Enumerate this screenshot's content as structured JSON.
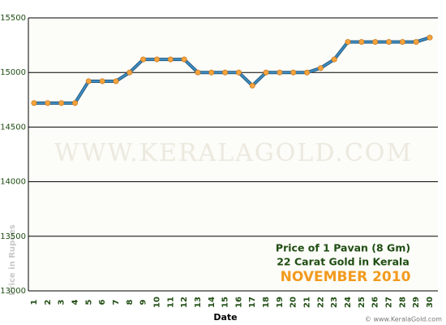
{
  "chart_data": {
    "type": "line",
    "title_lines": [
      "Price of 1 Pavan (8 Gm)",
      "22 Carat Gold in Kerala"
    ],
    "subtitle": "NOVEMBER 2010",
    "x_label": "Date",
    "y_label": "Price in Rupees",
    "watermark": "WWW.KERALAGOLD.COM",
    "credit": "© www.KeralaGold.com",
    "categories": [
      "1",
      "2",
      "3",
      "4",
      "5",
      "6",
      "7",
      "8",
      "9",
      "10",
      "11",
      "12",
      "13",
      "14",
      "15",
      "16",
      "17",
      "18",
      "19",
      "20",
      "21",
      "22",
      "23",
      "24",
      "25",
      "26",
      "27",
      "28",
      "29",
      "30"
    ],
    "series": [
      {
        "color": "#3f8fc4",
        "marker_color": "#f5a33c",
        "values": [
          14720,
          14720,
          14720,
          14720,
          14920,
          14920,
          14920,
          15000,
          15120,
          15120,
          15120,
          15120,
          15000,
          15000,
          15000,
          15000,
          14880,
          15000,
          15000,
          15000,
          15000,
          15040,
          15120,
          15280,
          15280,
          15280,
          15280,
          15280,
          15280,
          15320
        ]
      }
    ],
    "ylim": [
      13000,
      15500
    ],
    "yticks": [
      13000,
      13500,
      14000,
      14500,
      15000,
      15500
    ],
    "grid": true
  }
}
